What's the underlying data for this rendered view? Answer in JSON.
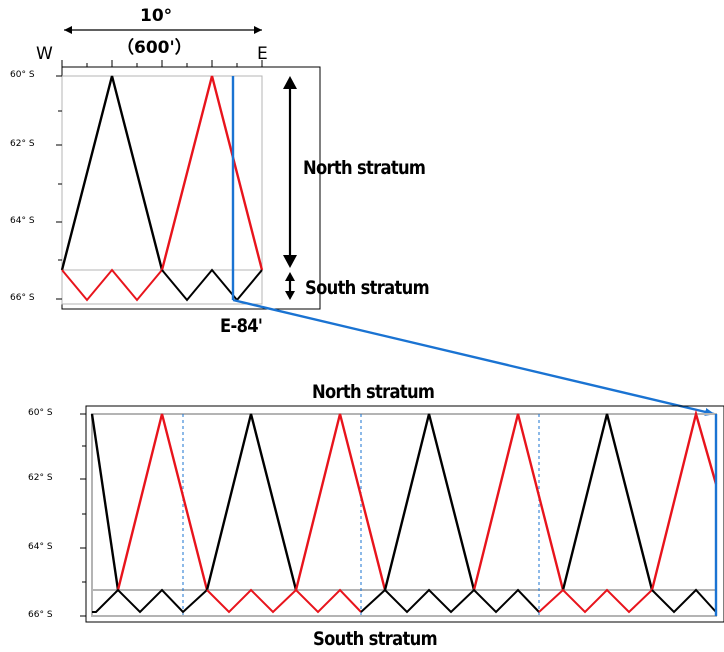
{
  "top": {
    "width_label": "10°",
    "minutes_label": "（600'）",
    "west_label": "W",
    "east_label": "E",
    "lat_ticks": [
      "60° S",
      "62° S",
      "64° S",
      "66° S"
    ],
    "north_stratum": "North stratum",
    "south_stratum": "South stratum",
    "cut_label": "E-84'"
  },
  "bottom": {
    "north_stratum": "North stratum",
    "south_stratum": "South stratum",
    "lat_ticks": [
      "60° S",
      "62° S",
      "64° S",
      "66° S"
    ]
  },
  "colors": {
    "track_black": "#000000",
    "track_red": "#e8141c",
    "boundary_blue": "#1a73d2",
    "frame_gray": "#b4b4b4"
  }
}
